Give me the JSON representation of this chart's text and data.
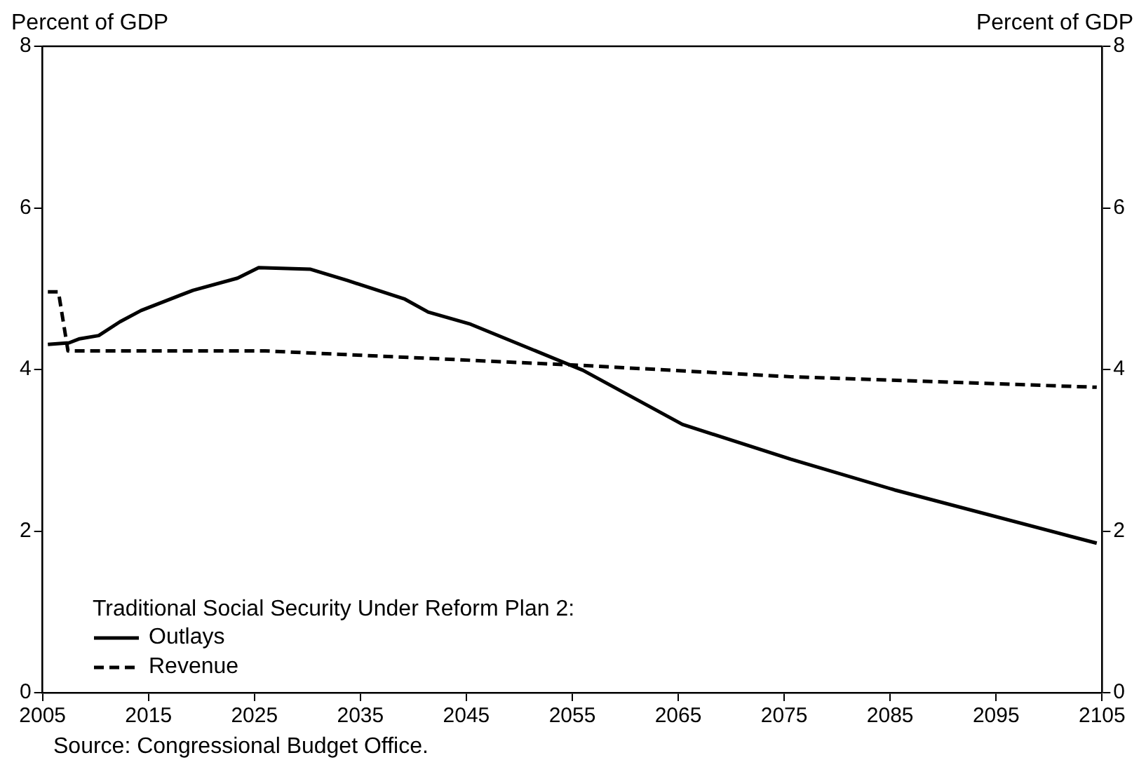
{
  "chart_data": {
    "type": "line",
    "ylabel": "Percent of GDP",
    "y2label": "Percent of GDP",
    "legend_title": "Traditional Social Security Under Reform Plan 2:",
    "legend": "bottom left",
    "grid": false,
    "marker": "none",
    "xlim": [
      2005,
      2105
    ],
    "xticks": [
      2005,
      2015,
      2025,
      2035,
      2045,
      2055,
      2065,
      2075,
      2085,
      2095,
      2105
    ],
    "ylim": [
      0,
      8
    ],
    "yticks": [
      0,
      2,
      4,
      6,
      8
    ],
    "y2lim": [
      0,
      8
    ],
    "y2ticks": [
      0,
      2,
      4,
      6,
      8
    ],
    "series": [
      {
        "name": "Outlays",
        "color": "#000000",
        "line_style": "solid",
        "x": [
          2005.5,
          2007.5,
          2008.5,
          2010.3,
          2012.3,
          2014.3,
          2019.2,
          2023.4,
          2025.4,
          2030.3,
          2033.8,
          2039.2,
          2041.4,
          2045.4,
          2056,
          2065.4,
          2075.6,
          2085.4,
          2104.5
        ],
        "values": [
          4.31,
          4.33,
          4.38,
          4.42,
          4.59,
          4.73,
          4.98,
          5.13,
          5.26,
          5.24,
          5.1,
          4.87,
          4.71,
          4.56,
          3.99,
          3.32,
          2.89,
          2.51,
          1.85
        ]
      },
      {
        "name": "Revenue",
        "color": "#000000",
        "line_style": "dashed",
        "x": [
          2005.5,
          2006.5,
          2007.4,
          2026,
          2056,
          2075.6,
          2104.5
        ],
        "values": [
          4.96,
          4.96,
          4.23,
          4.23,
          4.05,
          3.91,
          3.78
        ]
      }
    ],
    "annotations": [
      "Source: Congressional Budget Office."
    ]
  }
}
